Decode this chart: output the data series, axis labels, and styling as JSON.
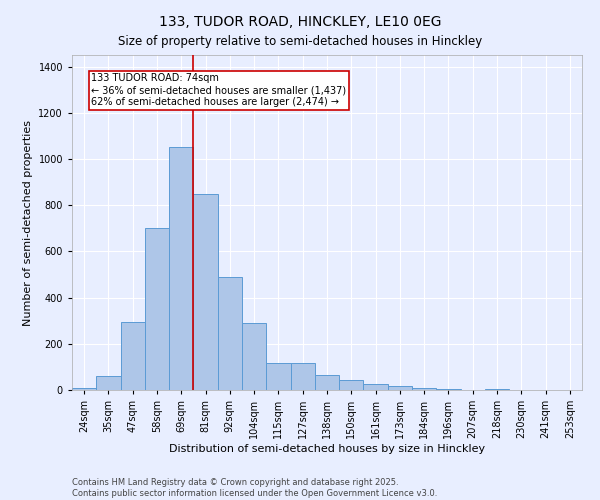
{
  "title": "133, TUDOR ROAD, HINCKLEY, LE10 0EG",
  "subtitle": "Size of property relative to semi-detached houses in Hinckley",
  "xlabel": "Distribution of semi-detached houses by size in Hinckley",
  "ylabel": "Number of semi-detached properties",
  "categories": [
    "24sqm",
    "35sqm",
    "47sqm",
    "58sqm",
    "69sqm",
    "81sqm",
    "92sqm",
    "104sqm",
    "115sqm",
    "127sqm",
    "138sqm",
    "150sqm",
    "161sqm",
    "173sqm",
    "184sqm",
    "196sqm",
    "207sqm",
    "218sqm",
    "230sqm",
    "241sqm",
    "253sqm"
  ],
  "values": [
    10,
    60,
    295,
    700,
    1050,
    850,
    490,
    290,
    115,
    115,
    65,
    42,
    25,
    18,
    10,
    5,
    2,
    5,
    0,
    0,
    0
  ],
  "bar_color": "#aec6e8",
  "bar_edge_color": "#5b9bd5",
  "vline_x": 4.5,
  "vline_color": "#cc0000",
  "annotation_line1": "133 TUDOR ROAD: 74sqm",
  "annotation_line2": "← 36% of semi-detached houses are smaller (1,437)",
  "annotation_line3": "62% of semi-detached houses are larger (2,474) →",
  "box_color": "#ffffff",
  "box_edge_color": "#cc0000",
  "ylim": [
    0,
    1450
  ],
  "footnote": "Contains HM Land Registry data © Crown copyright and database right 2025.\nContains public sector information licensed under the Open Government Licence v3.0.",
  "bg_color": "#e8eeff",
  "grid_color": "#ffffff",
  "title_fontsize": 10,
  "subtitle_fontsize": 8.5,
  "tick_fontsize": 7,
  "label_fontsize": 8,
  "annotation_fontsize": 7,
  "footnote_fontsize": 6
}
